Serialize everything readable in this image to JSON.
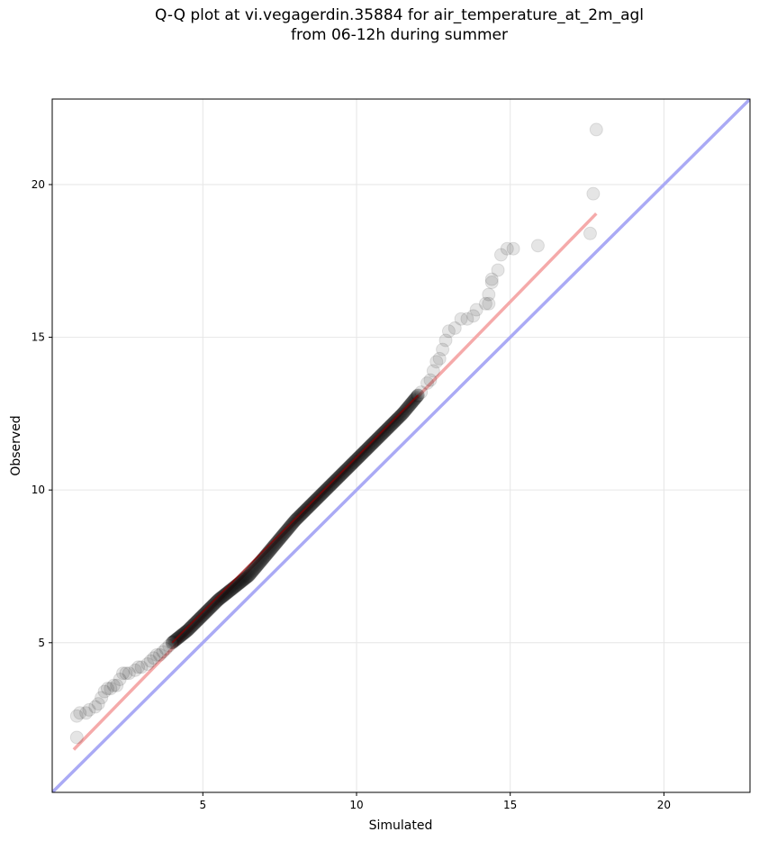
{
  "chart_data": {
    "type": "scatter",
    "title_line1": "Q-Q plot at vi.vegagerdin.35884 for air_temperature_at_2m_agl",
    "title_line2": "from 06-12h during summer",
    "xlabel": "Simulated",
    "ylabel": "Observed",
    "xlim": [
      0.1,
      22.8
    ],
    "ylim": [
      0.1,
      22.8
    ],
    "xticks": [
      "5",
      "10",
      "15",
      "20"
    ],
    "yticks": [
      "5",
      "10",
      "15",
      "20"
    ],
    "grid": true,
    "colors": {
      "points": "#000000",
      "identity_line": "#aaaaf5",
      "fit_line": "#f5aaaa",
      "fit_line_dense": "#8b0000",
      "grid": "#e6e6e6"
    },
    "identity_line": {
      "x": [
        0.1,
        22.8
      ],
      "y": [
        0.1,
        22.8
      ]
    },
    "fit_line": {
      "x": [
        0.8,
        17.8
      ],
      "y": [
        1.5,
        19.05
      ]
    },
    "tail_points": {
      "x": [
        0.9,
        0.9,
        1.0,
        1.2,
        1.3,
        1.5,
        1.6,
        1.7,
        1.8,
        1.9,
        2.0,
        2.1,
        2.2,
        2.3,
        2.4,
        2.5,
        2.6,
        2.8,
        2.9,
        3.0,
        3.2,
        3.3,
        3.4,
        3.5,
        3.6,
        3.7,
        3.8,
        3.9,
        4.0,
        12.0,
        12.1,
        12.3,
        12.4,
        12.5,
        12.6,
        12.7,
        12.8,
        12.9,
        13.0,
        13.2,
        13.4,
        13.6,
        13.8,
        13.9,
        14.2,
        14.3,
        14.3,
        14.4,
        14.4,
        14.6,
        14.7,
        14.9,
        15.1,
        15.9,
        17.6,
        17.7,
        17.8
      ],
      "y": [
        1.9,
        2.6,
        2.7,
        2.7,
        2.8,
        2.9,
        3.0,
        3.2,
        3.4,
        3.5,
        3.5,
        3.6,
        3.6,
        3.8,
        4.0,
        4.0,
        4.0,
        4.1,
        4.2,
        4.2,
        4.3,
        4.4,
        4.5,
        4.6,
        4.6,
        4.7,
        4.8,
        4.9,
        5.0,
        13.1,
        13.2,
        13.5,
        13.6,
        13.9,
        14.2,
        14.3,
        14.6,
        14.9,
        15.2,
        15.3,
        15.6,
        15.6,
        15.7,
        15.9,
        16.1,
        16.1,
        16.4,
        16.8,
        16.9,
        17.2,
        17.7,
        17.9,
        17.9,
        18.0,
        18.4,
        19.7,
        21.8
      ]
    },
    "body_quantiles": {
      "x": [
        4.0,
        4.5,
        5.0,
        5.5,
        6.0,
        6.5,
        7.0,
        7.5,
        8.0,
        8.5,
        9.0,
        9.5,
        10.0,
        10.5,
        11.0,
        11.5,
        12.0
      ],
      "y": [
        5.0,
        5.4,
        5.9,
        6.4,
        6.8,
        7.2,
        7.8,
        8.4,
        9.0,
        9.5,
        10.0,
        10.5,
        11.0,
        11.5,
        12.0,
        12.5,
        13.1
      ]
    },
    "body_point_count": 420
  }
}
